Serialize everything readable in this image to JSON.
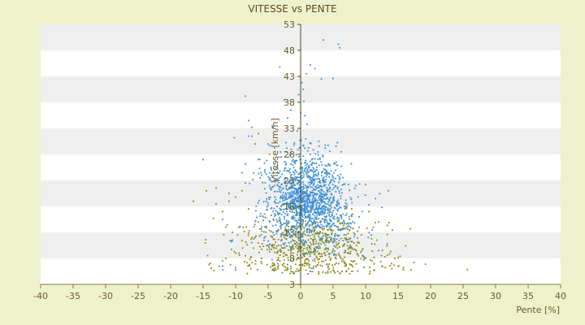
{
  "chart_data": {
    "type": "scatter",
    "title": "VITESSE vs PENTE",
    "xlabel": "Pente [%]",
    "ylabel": "Vitesse [km/h]",
    "xlim": [
      -40,
      40
    ],
    "ylim": [
      3,
      53
    ],
    "x_ticks": [
      -40,
      -35,
      -30,
      -25,
      -20,
      -15,
      -10,
      -5,
      0,
      5,
      10,
      15,
      20,
      25,
      30,
      35,
      40
    ],
    "y_ticks": [
      3,
      8,
      13,
      18,
      23,
      28,
      33,
      38,
      43,
      48,
      53
    ],
    "grid": "alternating horizontal bands",
    "legend": "none",
    "colors": {
      "background": "#eef2cc",
      "plot_band_light": "#ffffff",
      "plot_band_dark": "#efefef",
      "axis": "#8a7a3a",
      "series_a": "#3b8fd8",
      "series_b": "#8a8a14"
    },
    "series": [
      {
        "color": "#3b8fd8",
        "points": [
          [
            3.5,
            50.0
          ],
          [
            6.0,
            48.5
          ],
          [
            5.8,
            49.2
          ],
          [
            1.5,
            45.2
          ],
          [
            2.2,
            44.5
          ],
          [
            -3.2,
            44.8
          ],
          [
            0.4,
            40.5
          ],
          [
            0.2,
            41.8
          ],
          [
            -0.3,
            39.5
          ],
          [
            3.2,
            42.5
          ],
          [
            5.0,
            42.6
          ],
          [
            -8.5,
            39.2
          ],
          [
            0.5,
            38.2
          ],
          [
            -1.5,
            36.5
          ],
          [
            -2.0,
            35.0
          ],
          [
            -8.0,
            34.5
          ],
          [
            1.0,
            33.8
          ],
          [
            -0.5,
            32.5
          ],
          [
            0.8,
            31.0
          ],
          [
            -1.0,
            29.8
          ],
          [
            2.8,
            30.5
          ],
          [
            3.8,
            29.2
          ],
          [
            -2.2,
            28.5
          ],
          [
            1.5,
            28.0
          ],
          [
            -3.0,
            27.5
          ],
          [
            4.5,
            28.6
          ],
          [
            5.5,
            26.5
          ],
          [
            7.8,
            26.2
          ],
          [
            -4.5,
            25.0
          ],
          [
            -6.0,
            24.0
          ],
          [
            -9.0,
            24.5
          ],
          [
            -8.5,
            22.5
          ],
          [
            6.5,
            23.5
          ],
          [
            8.5,
            22.0
          ],
          [
            10.0,
            22.2
          ],
          [
            13.5,
            21.0
          ],
          [
            11.5,
            19.5
          ],
          [
            -11.0,
            19.0
          ],
          [
            -13.0,
            18.5
          ],
          [
            10.5,
            18.3
          ],
          [
            12.5,
            17.8
          ],
          [
            -12.0,
            15.5
          ],
          [
            -11.5,
            14.0
          ],
          [
            9.0,
            16.0
          ],
          [
            11.0,
            13.5
          ],
          [
            7.5,
            14.2
          ],
          [
            -10.5,
            11.5
          ],
          [
            -7.0,
            12.0
          ],
          [
            -9.5,
            9.0
          ],
          [
            -10.8,
            6.8
          ],
          [
            -12.0,
            6.5
          ],
          [
            -10.0,
            5.8
          ],
          [
            -3.5,
            7.0
          ],
          [
            -1.5,
            6.0
          ],
          [
            2.0,
            6.5
          ],
          [
            4.0,
            6.8
          ],
          [
            9.5,
            8.5
          ],
          [
            12.0,
            9.5
          ],
          [
            -5.0,
            30.0
          ],
          [
            -7.5,
            31.5
          ],
          [
            -6.5,
            27.0
          ],
          [
            -2.5,
            38.5
          ],
          [
            0.0,
            36.0
          ],
          [
            0.9,
            43.5
          ],
          [
            -1.2,
            26.0
          ],
          [
            2.5,
            25.5
          ]
        ],
        "cloud": {
          "center_x": 0.8,
          "center_y": 19.0,
          "spread_x": 2.6,
          "spread_y": 4.3,
          "count": 1400
        }
      },
      {
        "color": "#8a8a14",
        "points": [
          [
            -15.0,
            27.0
          ],
          [
            -10.2,
            31.2
          ],
          [
            -7.0,
            30.0
          ],
          [
            -6.5,
            32.0
          ],
          [
            -7.5,
            33.2
          ],
          [
            -4.8,
            28.0
          ],
          [
            -14.5,
            21.0
          ],
          [
            -16.5,
            19.0
          ],
          [
            -13.0,
            21.5
          ],
          [
            -9.0,
            21.0
          ],
          [
            -10.0,
            19.8
          ],
          [
            -11.0,
            20.5
          ],
          [
            -12.0,
            17.0
          ],
          [
            -8.0,
            17.5
          ],
          [
            -6.5,
            15.0
          ],
          [
            -9.5,
            14.0
          ],
          [
            -10.5,
            13.0
          ],
          [
            -7.5,
            12.0
          ],
          [
            -11.5,
            8.0
          ],
          [
            -12.5,
            6.5
          ],
          [
            -12.0,
            7.5
          ],
          [
            -8.5,
            8.5
          ],
          [
            -6.0,
            7.0
          ],
          [
            -5.0,
            10.5
          ],
          [
            3.0,
            10.0
          ],
          [
            5.0,
            11.0
          ],
          [
            7.0,
            12.5
          ],
          [
            8.5,
            9.5
          ],
          [
            9.8,
            8.0
          ],
          [
            11.0,
            7.5
          ],
          [
            12.5,
            6.5
          ],
          [
            14.0,
            7.0
          ],
          [
            15.0,
            6.5
          ],
          [
            15.8,
            5.8
          ],
          [
            17.0,
            5.8
          ],
          [
            14.5,
            8.0
          ],
          [
            12.0,
            15.0
          ],
          [
            10.5,
            17.0
          ],
          [
            8.0,
            16.5
          ],
          [
            6.2,
            19.5
          ],
          [
            4.5,
            18.0
          ],
          [
            2.0,
            14.0
          ],
          [
            -3.0,
            18.0
          ],
          [
            -4.0,
            22.0
          ],
          [
            -5.5,
            25.0
          ],
          [
            -1.5,
            24.0
          ],
          [
            0.5,
            8.5
          ],
          [
            -2.0,
            6.2
          ],
          [
            1.5,
            5.5
          ],
          [
            4.2,
            5.2
          ],
          [
            -3.8,
            5.8
          ],
          [
            6.5,
            7.8
          ],
          [
            9.0,
            11.0
          ],
          [
            10.2,
            13.8
          ]
        ],
        "cloud": {
          "center_x": 1.5,
          "center_y": 10.0,
          "spread_x": 4.5,
          "spread_y": 3.2,
          "count": 650
        }
      }
    ]
  }
}
